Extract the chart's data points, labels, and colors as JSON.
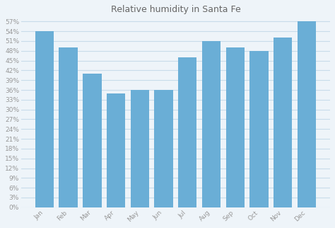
{
  "title": "Relative humidity in Santa Fe",
  "months": [
    "Jan",
    "Feb",
    "Mar",
    "Apr",
    "May",
    "Jun",
    "Jul",
    "Aug",
    "Sep",
    "Oct",
    "Nov",
    "Dec"
  ],
  "values": [
    54,
    49,
    41,
    35,
    36,
    36,
    46,
    51,
    49,
    48,
    52,
    57
  ],
  "bar_color": "#6aaed6",
  "background_color": "#eef4f9",
  "grid_color": "#c8dcea",
  "ylim": [
    0,
    57
  ],
  "ytick_step": 3,
  "title_fontsize": 9,
  "tick_fontsize": 6.5,
  "title_color": "#666666",
  "tick_color": "#999999"
}
